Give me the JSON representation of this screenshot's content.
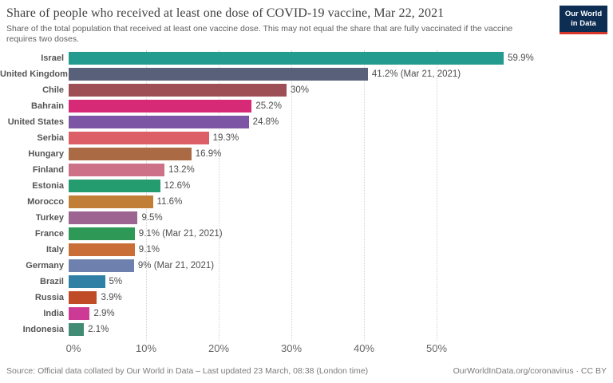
{
  "header": {
    "title": "Share of people who received at least one dose of COVID-19 vaccine, Mar 22, 2021",
    "subtitle": "Share of the total population that received at least one vaccine dose. This may not equal the share that are fully vaccinated if the vaccine requires two doses.",
    "logo": {
      "line1": "Our World",
      "line2": "in Data",
      "bg_color": "#0d2d52",
      "accent_color": "#d8352a"
    }
  },
  "chart_data": {
    "type": "bar",
    "orientation": "horizontal",
    "title": "Share of people who received at least one dose of COVID-19 vaccine, Mar 22, 2021",
    "categories": [
      "Israel",
      "United Kingdom",
      "Chile",
      "Bahrain",
      "United States",
      "Serbia",
      "Hungary",
      "Finland",
      "Estonia",
      "Morocco",
      "Turkey",
      "France",
      "Italy",
      "Germany",
      "Brazil",
      "Russia",
      "India",
      "Indonesia"
    ],
    "values": [
      59.9,
      41.2,
      30,
      25.2,
      24.8,
      19.3,
      16.9,
      13.2,
      12.6,
      11.6,
      9.5,
      9.1,
      9.1,
      9,
      5,
      3.9,
      2.9,
      2.1
    ],
    "value_labels": [
      "59.9%",
      "41.2% (Mar 21, 2021)",
      "30%",
      "25.2%",
      "24.8%",
      "19.3%",
      "16.9%",
      "13.2%",
      "12.6%",
      "11.6%",
      "9.5%",
      "9.1% (Mar 21, 2021)",
      "9.1%",
      "9% (Mar 21, 2021)",
      "5%",
      "3.9%",
      "2.9%",
      "2.1%"
    ],
    "bar_colors": [
      "#239b8e",
      "#586179",
      "#9e4e55",
      "#d62a76",
      "#7c55a5",
      "#dc5f67",
      "#aa6b44",
      "#cd7189",
      "#259b70",
      "#c17e36",
      "#9d6391",
      "#2e9857",
      "#ca6e37",
      "#6e81ae",
      "#3080a6",
      "#c04b27",
      "#cd3a95",
      "#428b75"
    ],
    "xlabel": "",
    "ylabel": "",
    "x_ticks": [
      "0%",
      "10%",
      "20%",
      "30%",
      "40%",
      "50%"
    ],
    "x_tick_values": [
      0,
      10,
      20,
      30,
      40,
      50
    ],
    "xlim": [
      0,
      60
    ],
    "grid": "dotted-vertical",
    "legend": "none"
  },
  "footer": {
    "source": "Source: Official data collated by Our World in Data – Last updated 23 March, 08:38 (London time)",
    "link": "OurWorldInData.org/coronavirus · CC BY"
  }
}
